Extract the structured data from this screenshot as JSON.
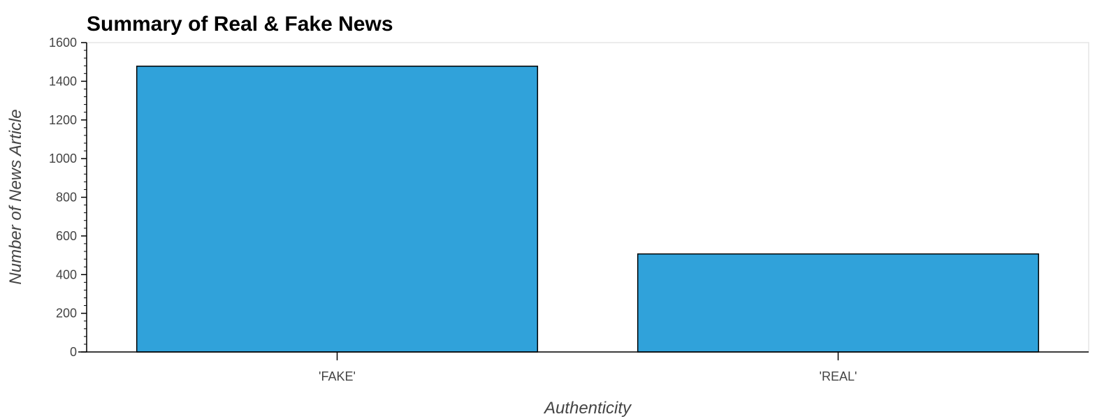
{
  "chart_data": {
    "type": "bar",
    "title": "Summary of Real & Fake News",
    "xlabel": "Authenticity",
    "ylabel": "Number of News Article",
    "categories": [
      "'FAKE'",
      "'REAL'"
    ],
    "values": [
      1478,
      507
    ],
    "ylim": [
      0,
      1600
    ],
    "yticks": [
      0,
      200,
      400,
      600,
      800,
      1000,
      1200,
      1400,
      1600
    ],
    "grid": false,
    "bar_color": "#30a2da"
  }
}
